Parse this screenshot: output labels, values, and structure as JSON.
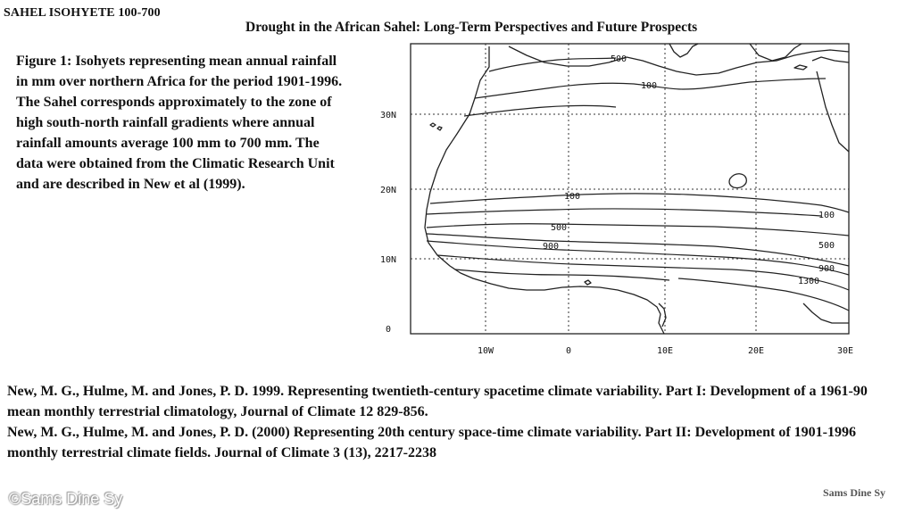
{
  "header": {
    "top_left_title": "SAHEL ISOHYETE 100-700",
    "main_title": "Drought in the African Sahel: Long-Term Perspectives and Future Prospects"
  },
  "caption": "Figure 1: Isohyets representing mean annual rainfall in mm over northern Africa for the period 1901-1996. The Sahel corresponds approximately to the zone of high south-north rainfall gradients where annual rainfall amounts average 100 mm to 700 mm. The data were obtained from the Climatic Research Unit and are described in New et al (1999).",
  "map": {
    "lat_labels": [
      "30N",
      "20N",
      "10N",
      "0"
    ],
    "lon_labels": [
      "10W",
      "0",
      "10E",
      "20E",
      "30E"
    ],
    "contour_labels": {
      "north_500": "500",
      "north_100": "100",
      "sahel_100_west": "100",
      "sahel_100_east": "100",
      "sahel_500_west": "500",
      "sahel_500_east": "500",
      "sahel_900_west": "900",
      "sahel_900_east": "900",
      "sahel_1300": "1300"
    },
    "line_color": "#222222"
  },
  "references": [
    "New, M. G., Hulme, M. and Jones, P. D. 1999. Representing twentieth-century spacetime climate variability. Part I: Development of a 1961-90 mean monthly terrestrial climatology, Journal of Climate 12 829-856.",
    "New, M. G., Hulme, M. and Jones, P. D. (2000) Representing 20th century space-time climate variability. Part II: Development of 1901-1996 monthly terrestrial climate fields. Journal of Climate 3 (13), 2217-2238"
  ],
  "watermark_left": "©Sams Dine Sy",
  "watermark_right": "Sams Dine Sy"
}
